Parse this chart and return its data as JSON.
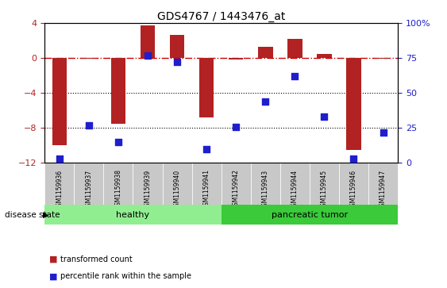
{
  "title": "GDS4767 / 1443476_at",
  "samples": [
    "GSM1159936",
    "GSM1159937",
    "GSM1159938",
    "GSM1159939",
    "GSM1159940",
    "GSM1159941",
    "GSM1159942",
    "GSM1159943",
    "GSM1159944",
    "GSM1159945",
    "GSM1159946",
    "GSM1159947"
  ],
  "transformed_count": [
    -10.0,
    -0.1,
    -7.5,
    3.7,
    2.6,
    -6.8,
    -0.2,
    1.3,
    2.2,
    0.5,
    -10.5,
    -0.1
  ],
  "percentile_rank": [
    3,
    27,
    15,
    77,
    72,
    10,
    26,
    44,
    62,
    33,
    3,
    22
  ],
  "ylim_left": [
    -12,
    4
  ],
  "ylim_right": [
    0,
    100
  ],
  "yticks_left": [
    -12,
    -8,
    -4,
    0,
    4
  ],
  "yticks_right": [
    0,
    25,
    50,
    75,
    100
  ],
  "bar_color": "#B22222",
  "dot_color": "#1E1ECD",
  "hline_color": "#CC0000",
  "dotted_line_color": "#000000",
  "healthy_color": "#90EE90",
  "tumor_color": "#3ACA3A",
  "gray_box_color": "#C8C8C8",
  "healthy_label": "healthy",
  "tumor_label": "pancreatic tumor",
  "healthy_count": 6,
  "tumor_count": 6,
  "legend_bar_label": "transformed count",
  "legend_dot_label": "percentile rank within the sample",
  "disease_state_label": "disease state",
  "bar_width": 0.5,
  "dot_size": 28
}
